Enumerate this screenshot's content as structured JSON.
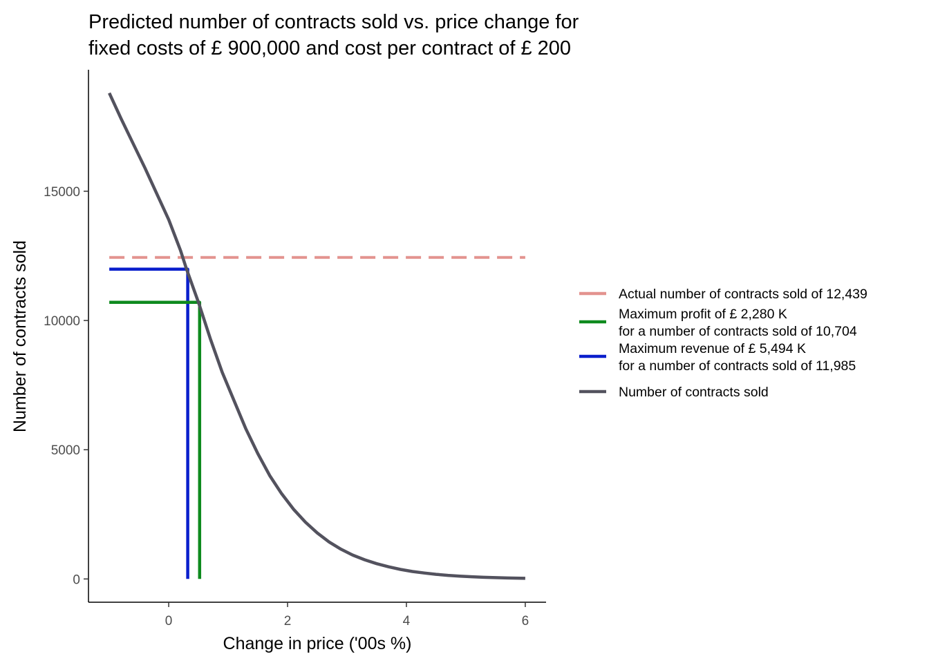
{
  "chart_data": {
    "type": "line",
    "title": [
      "Predicted number of contracts sold vs. price change for",
      "fixed costs of £ 900,000 and cost per contract of £ 200"
    ],
    "xlabel": "Change in price ('00s %)",
    "ylabel": "Number of contracts sold",
    "xlim": [
      -1.35,
      6.35
    ],
    "ylim": [
      -900,
      19700
    ],
    "xticks": [
      0,
      2,
      4,
      6
    ],
    "xtick_labels": [
      "0",
      "2",
      "4",
      "6"
    ],
    "yticks": [
      0,
      5000,
      10000,
      15000
    ],
    "ytick_labels": [
      "0",
      "5000",
      "10000",
      "15000"
    ],
    "grid": false,
    "legend_position": "right",
    "series": [
      {
        "name": "Number of contracts sold",
        "color": "#53525e",
        "style": "solid",
        "x": [
          -1.0,
          -0.8,
          -0.6,
          -0.4,
          -0.2,
          0.0,
          0.2,
          0.3,
          0.5,
          0.7,
          0.9,
          1.1,
          1.3,
          1.5,
          1.7,
          1.9,
          2.1,
          2.3,
          2.5,
          2.7,
          2.9,
          3.1,
          3.3,
          3.5,
          3.7,
          3.9,
          4.1,
          4.3,
          4.5,
          4.7,
          4.9,
          5.1,
          5.3,
          5.5,
          5.7,
          6.0
        ],
        "y": [
          18800,
          17800,
          16850,
          15900,
          14900,
          13900,
          12700,
          11985,
          10704,
          9300,
          8000,
          6900,
          5800,
          4850,
          4000,
          3300,
          2700,
          2200,
          1780,
          1430,
          1150,
          920,
          740,
          590,
          470,
          370,
          290,
          230,
          180,
          140,
          110,
          85,
          65,
          50,
          38,
          25
        ]
      },
      {
        "name": "Actual number of contracts sold of 12,439",
        "color": "#e3938f",
        "style": "dashed",
        "x": [
          -1.0,
          6.0
        ],
        "y": [
          12439,
          12439
        ]
      },
      {
        "name": "Maximum profit of £ 2,280 K\nfor a number of contracts sold of 10,704",
        "color": "#0e8a1e",
        "style": "solid",
        "x": [
          -1.0,
          0.52,
          0.52
        ],
        "y": [
          10704,
          10704,
          0
        ]
      },
      {
        "name": "Maximum revenue of £ 5,494 K\nfor a number of contracts sold of 11,985",
        "color": "#0a1fcc",
        "style": "solid",
        "x": [
          -1.0,
          0.32,
          0.32
        ],
        "y": [
          11985,
          11985,
          0
        ]
      }
    ]
  },
  "legend": [
    {
      "key": "actual",
      "lines": [
        "Actual number of contracts sold of 12,439"
      ],
      "color": "#e3938f",
      "dashed": true
    },
    {
      "key": "profit",
      "lines": [
        "Maximum profit of £ 2,280 K",
        "for a number of contracts sold of 10,704"
      ],
      "color": "#0e8a1e",
      "dashed": false
    },
    {
      "key": "revenue",
      "lines": [
        "Maximum revenue of £ 5,494 K",
        "for a number of contracts sold of 11,985"
      ],
      "color": "#0a1fcc",
      "dashed": false
    },
    {
      "key": "contracts",
      "lines": [
        "Number of contracts sold"
      ],
      "color": "#53525e",
      "dashed": false
    }
  ]
}
